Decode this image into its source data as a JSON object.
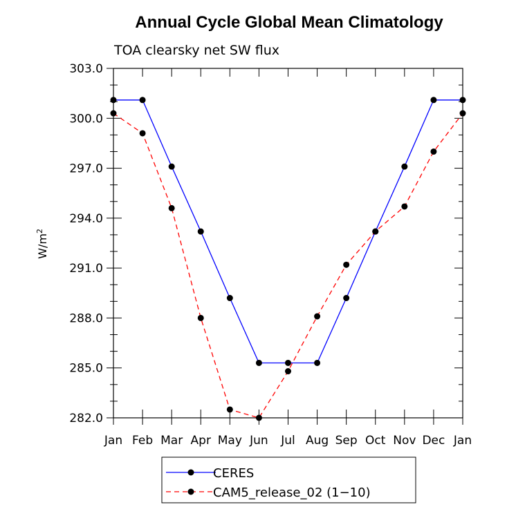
{
  "chart_data": {
    "type": "line",
    "title": "Annual Cycle Global Mean Climatology",
    "subtitle": "TOA clearsky net SW flux",
    "ylabel": "W/m",
    "ylabel_sup": "2",
    "xlabel": "",
    "categories": [
      "Jan",
      "Feb",
      "Mar",
      "Apr",
      "May",
      "Jun",
      "Jul",
      "Aug",
      "Sep",
      "Oct",
      "Nov",
      "Dec",
      "Jan"
    ],
    "ylim": [
      282.0,
      303.0
    ],
    "yticks": [
      "282.0",
      "285.0",
      "288.0",
      "291.0",
      "294.0",
      "297.0",
      "300.0",
      "303.0"
    ],
    "grid": false,
    "legend_position": "bottom-center",
    "series": [
      {
        "name": "CERES",
        "color": "#0000ff",
        "dash": "solid",
        "marker": "circle",
        "values": [
          301.1,
          301.1,
          297.1,
          293.2,
          289.2,
          285.3,
          285.3,
          285.3,
          289.2,
          293.2,
          297.1,
          301.1,
          301.1
        ]
      },
      {
        "name": "CAM5_release_02 (1−10)",
        "color": "#ff0000",
        "dash": "dashed",
        "marker": "circle",
        "values": [
          300.3,
          299.1,
          294.6,
          288.0,
          282.5,
          282.0,
          284.8,
          288.1,
          291.2,
          293.2,
          294.7,
          298.0,
          300.3
        ]
      }
    ]
  }
}
